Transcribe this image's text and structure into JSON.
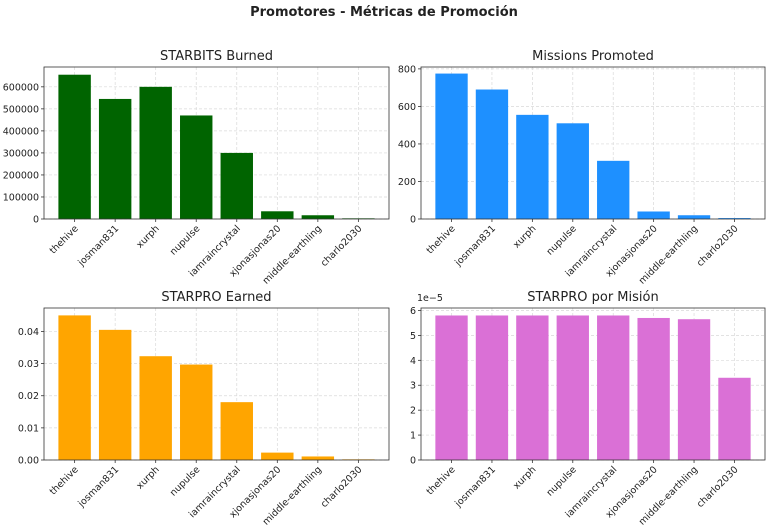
{
  "figure": {
    "title": "Promotores - Métricas de Promoción"
  },
  "chart_data": [
    {
      "type": "bar",
      "title": "STARBITS Burned",
      "color": "#006400",
      "categories": [
        "thehive",
        "josman831",
        "xurph",
        "nupulse",
        "iamraincrystal",
        "xjonasjonas20",
        "middle-earthling",
        "charlo2030"
      ],
      "values": [
        655000,
        545000,
        600000,
        470000,
        300000,
        35000,
        17000,
        3000
      ],
      "ylim": [
        0,
        690000
      ],
      "yticks": [
        0,
        100000,
        200000,
        300000,
        400000,
        500000,
        600000
      ],
      "ytick_labels": [
        "0",
        "100000",
        "200000",
        "300000",
        "400000",
        "500000",
        "600000"
      ],
      "grid": true
    },
    {
      "type": "bar",
      "title": "Missions Promoted",
      "color": "#1e90ff",
      "categories": [
        "thehive",
        "josman831",
        "xurph",
        "nupulse",
        "iamraincrystal",
        "xjonasjonas20",
        "middle-earthling",
        "charlo2030"
      ],
      "values": [
        775,
        690,
        555,
        510,
        310,
        40,
        20,
        5
      ],
      "ylim": [
        0,
        810
      ],
      "yticks": [
        0,
        200,
        400,
        600,
        800
      ],
      "ytick_labels": [
        "0",
        "200",
        "400",
        "600",
        "800"
      ],
      "grid": true
    },
    {
      "type": "bar",
      "title": "STARPRO Earned",
      "color": "#ffa500",
      "categories": [
        "thehive",
        "josman831",
        "xurph",
        "nupulse",
        "iamraincrystal",
        "xjonasjonas20",
        "middle-earthling",
        "charlo2030"
      ],
      "values": [
        0.045,
        0.0405,
        0.0323,
        0.0297,
        0.018,
        0.0023,
        0.0011,
        0.0002
      ],
      "ylim": [
        0,
        0.0473
      ],
      "yticks": [
        0,
        0.01,
        0.02,
        0.03,
        0.04
      ],
      "ytick_labels": [
        "0.00",
        "0.01",
        "0.02",
        "0.03",
        "0.04"
      ],
      "grid": true
    },
    {
      "type": "bar",
      "title": "STARPRO por Misión",
      "color": "#da70d6",
      "categories": [
        "thehive",
        "josman831",
        "xurph",
        "nupulse",
        "iamraincrystal",
        "xjonasjonas20",
        "middle-earthling",
        "charlo2030"
      ],
      "values": [
        5.8,
        5.8,
        5.8,
        5.8,
        5.8,
        5.7,
        5.65,
        3.3
      ],
      "ylim": [
        0,
        6.1
      ],
      "yticks": [
        0,
        1,
        2,
        3,
        4,
        5,
        6
      ],
      "ytick_labels": [
        "0",
        "1",
        "2",
        "3",
        "4",
        "5",
        "6"
      ],
      "offset_label": "1e−5",
      "grid": true
    }
  ]
}
